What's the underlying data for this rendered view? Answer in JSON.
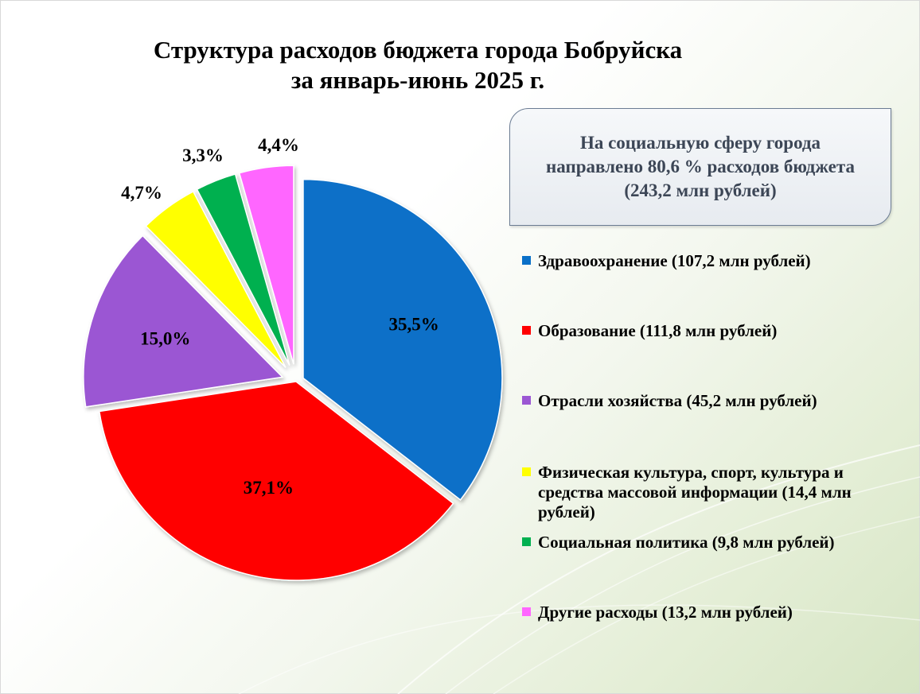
{
  "title": {
    "line1": "Структура расходов бюджета города Бобруйска",
    "line2": "за январь-июнь 2025 г."
  },
  "info_box": {
    "text": "На социальную сферу города направлено 80,6  % расходов бюджета (243,2 млн рублей)"
  },
  "chart_data": {
    "type": "pie",
    "slices": [
      {
        "label": "Здравоохранение (107,2 млн рублей)",
        "value": 35.5,
        "display": "35,5%",
        "color": "#0a70c8"
      },
      {
        "label": "Образование (111,8 млн рублей)",
        "value": 37.1,
        "display": "37,1%",
        "color": "#ff0000"
      },
      {
        "label": "Отрасли хозяйства (45,2 млн рублей)",
        "value": 15.0,
        "display": "15,0%",
        "color": "#9b57d3"
      },
      {
        "label": "Физическая культура, спорт, культура и средства массовой информации (14,4 млн рублей)",
        "value": 4.7,
        "display": "4,7%",
        "color": "#ffff00"
      },
      {
        "label": "Социальная политика (9,8 млн рублей)",
        "value": 3.3,
        "display": "3,3%",
        "color": "#00b050"
      },
      {
        "label": "Другие расходы (13,2 млн рублей)",
        "value": 4.4,
        "display": "4,4%",
        "color": "#ff66ff"
      }
    ],
    "start_angle_deg": 0,
    "direction": "clockwise",
    "exploded": true,
    "legend_position": "right"
  }
}
